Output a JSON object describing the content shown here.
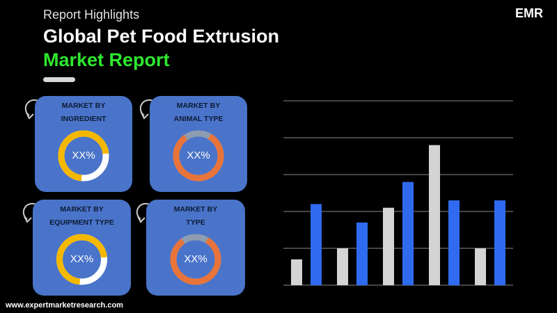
{
  "header": {
    "kicker": "Report Highlights",
    "title": "Global Pet Food Extrusion",
    "title_highlight": "Market Report"
  },
  "logo": {
    "text": "EMR"
  },
  "cards": [
    {
      "label_lines": [
        "MARKET BY",
        "INGREDIENT"
      ],
      "value": "XX%"
    },
    {
      "label_lines": [
        "MARKET BY",
        "ANIMAL TYPE"
      ],
      "value": "XX%"
    },
    {
      "label_lines": [
        "MARKET BY",
        "EQUIPMENT TYPE"
      ],
      "value": "XX%"
    },
    {
      "label_lines": [
        "MARKET BY",
        "TYPE"
      ],
      "value": "XX%"
    }
  ],
  "footer": {
    "url": "www.expertmarketresearch.com"
  },
  "chart_data": {
    "type": "bar",
    "categories": [
      null,
      null,
      null,
      null,
      null
    ],
    "series": [
      {
        "color": "#d4d4d4",
        "values": [
          0.7,
          1.0,
          2.1,
          3.8,
          1.0
        ]
      },
      {
        "color": "#2f6bf0",
        "values": [
          2.2,
          1.7,
          2.8,
          2.3,
          2.3
        ]
      }
    ],
    "ylim": [
      0,
      5
    ],
    "yticks": [
      0,
      1,
      2,
      3,
      4,
      5
    ],
    "grid": true
  }
}
